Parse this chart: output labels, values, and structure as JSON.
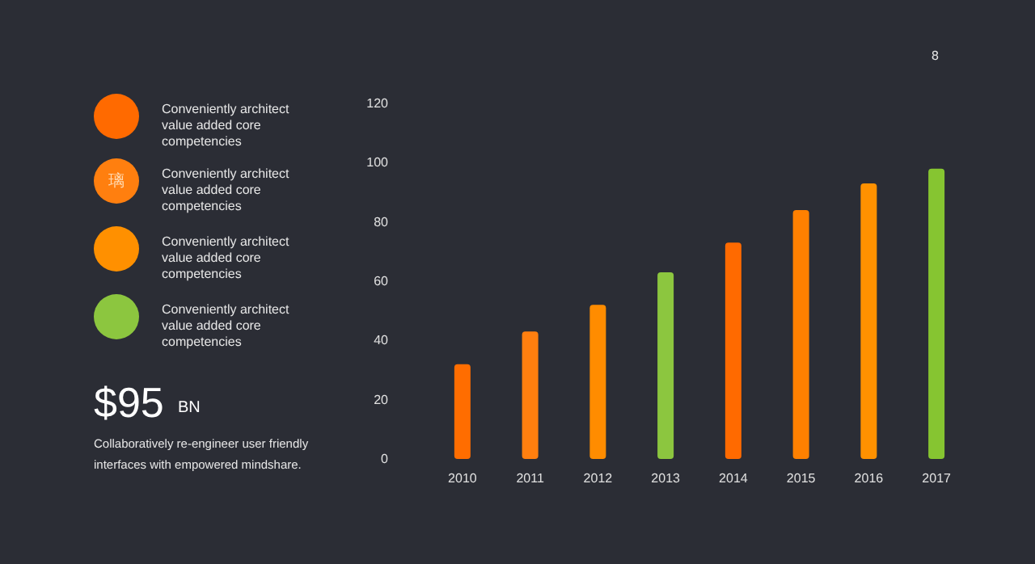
{
  "chart_data": {
    "type": "bar",
    "categories": [
      "2010",
      "2011",
      "2012",
      "2013",
      "2014",
      "2015",
      "2016",
      "2017"
    ],
    "values": [
      32,
      43,
      52,
      63,
      73,
      84,
      93,
      98
    ],
    "colors": [
      "#ff6d00",
      "#ff7f0f",
      "#ff8c00",
      "#8cc63f",
      "#ff6a00",
      "#ff8000",
      "#ff9100",
      "#86c531"
    ],
    "ylim": [
      0,
      120
    ],
    "yticks": [
      0,
      20,
      40,
      60,
      80,
      100,
      120
    ],
    "grid": false,
    "annotations": [
      "8",
      "Conveniently architect value added core competencies",
      "璃",
      "Conveniently architect value added core competencies",
      "Conveniently architect value added core competencies",
      "Conveniently architect value added core competencies",
      "$95",
      "BN",
      "Collaboratively re-engineer user friendly interfaces with empowered mindshare."
    ]
  }
}
